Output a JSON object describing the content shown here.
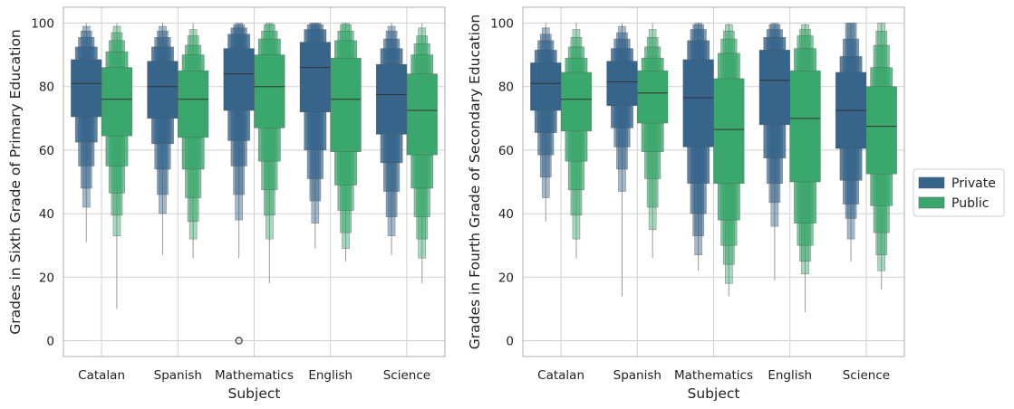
{
  "chart_data": [
    {
      "type": "boxen",
      "xlabel": "Subject",
      "ylabel": "Grades in Sixth Grade of Primary Education",
      "ylim": [
        -5,
        105
      ],
      "yticks": [
        0,
        20,
        40,
        60,
        80,
        100
      ],
      "grid": true,
      "categories": [
        "Catalan",
        "Spanish",
        "Mathematics",
        "English",
        "Science"
      ],
      "series": [
        {
          "name": "Private",
          "boxes": [
            {
              "median": 81,
              "levels": [
                [
                  70.5,
                  88.5
                ],
                [
                  62.5,
                  92.5
                ],
                [
                  55,
                  95.5
                ],
                [
                  48,
                  97.5
                ],
                [
                  42,
                  99
                ],
                [
                  31,
                  100
                ]
              ]
            },
            {
              "median": 80,
              "levels": [
                [
                  70,
                  88
                ],
                [
                  62,
                  92.5
                ],
                [
                  54,
                  95.5
                ],
                [
                  46,
                  97.5
                ],
                [
                  40,
                  99
                ],
                [
                  27,
                  100
                ]
              ]
            },
            {
              "median": 84,
              "levels": [
                [
                  72.5,
                  92
                ],
                [
                  63,
                  96.5
                ],
                [
                  55,
                  98.5
                ],
                [
                  46,
                  99.5
                ],
                [
                  38,
                  100
                ],
                [
                  26,
                  100
                ]
              ],
              "outliers": [
                0,
                0
              ]
            },
            {
              "median": 86,
              "levels": [
                [
                  72,
                  94
                ],
                [
                  60,
                  98
                ],
                [
                  51,
                  99.5
                ],
                [
                  44,
                  100
                ],
                [
                  37,
                  100
                ],
                [
                  29,
                  100
                ]
              ]
            },
            {
              "median": 77.5,
              "levels": [
                [
                  65,
                  87
                ],
                [
                  56,
                  92
                ],
                [
                  47,
                  95
                ],
                [
                  39,
                  97.5
                ],
                [
                  33,
                  99
                ],
                [
                  27,
                  100
                ]
              ]
            }
          ]
        },
        {
          "name": "Public",
          "boxes": [
            {
              "median": 76,
              "levels": [
                [
                  64.5,
                  86
                ],
                [
                  55,
                  91
                ],
                [
                  46.5,
                  94.5
                ],
                [
                  39.5,
                  97
                ],
                [
                  33,
                  99
                ],
                [
                  10,
                  100
                ]
              ]
            },
            {
              "median": 76,
              "levels": [
                [
                  64,
                  85
                ],
                [
                  54,
                  90
                ],
                [
                  45,
                  93
                ],
                [
                  37.5,
                  96
                ],
                [
                  32,
                  98
                ],
                [
                  26,
                  100
                ]
              ]
            },
            {
              "median": 80,
              "levels": [
                [
                  67,
                  90
                ],
                [
                  56.5,
                  95
                ],
                [
                  47.5,
                  97.5
                ],
                [
                  39.5,
                  99.5
                ],
                [
                  32,
                  100
                ],
                [
                  18,
                  100
                ]
              ]
            },
            {
              "median": 76,
              "levels": [
                [
                  59.5,
                  89
                ],
                [
                  49,
                  94.5
                ],
                [
                  41,
                  97.5
                ],
                [
                  34,
                  99.5
                ],
                [
                  29,
                  100
                ],
                [
                  25,
                  100
                ]
              ]
            },
            {
              "median": 72.5,
              "levels": [
                [
                  58.5,
                  84
                ],
                [
                  48,
                  90
                ],
                [
                  39,
                  93.5
                ],
                [
                  32,
                  96
                ],
                [
                  26,
                  98.5
                ],
                [
                  18,
                  100
                ]
              ]
            }
          ]
        }
      ]
    },
    {
      "type": "boxen",
      "xlabel": "Subject",
      "ylabel": "Grades in Fourth Grade of Secondary Education",
      "ylim": [
        -5,
        105
      ],
      "yticks": [
        0,
        20,
        40,
        60,
        80,
        100
      ],
      "grid": true,
      "categories": [
        "Catalan",
        "Spanish",
        "Mathematics",
        "English",
        "Science"
      ],
      "series": [
        {
          "name": "Private",
          "boxes": [
            {
              "median": 81,
              "levels": [
                [
                  72.5,
                  87.5
                ],
                [
                  65.5,
                  91.5
                ],
                [
                  58.5,
                  94.5
                ],
                [
                  51.5,
                  96.5
                ],
                [
                  45,
                  98.5
                ],
                [
                  37.5,
                  100
                ]
              ]
            },
            {
              "median": 81.5,
              "levels": [
                [
                  74,
                  88
                ],
                [
                  67,
                  92
                ],
                [
                  61,
                  95
                ],
                [
                  54,
                  97
                ],
                [
                  47,
                  99
                ],
                [
                  14,
                  100
                ]
              ]
            },
            {
              "median": 76.5,
              "levels": [
                [
                  61,
                  88.5
                ],
                [
                  49.5,
                  94.5
                ],
                [
                  40,
                  98
                ],
                [
                  33,
                  99.5
                ],
                [
                  27,
                  100
                ],
                [
                  22,
                  100
                ]
              ]
            },
            {
              "median": 82,
              "levels": [
                [
                  68,
                  91.5
                ],
                [
                  57.5,
                  95.5
                ],
                [
                  49.5,
                  98
                ],
                [
                  43.5,
                  99.5
                ],
                [
                  36,
                  100
                ],
                [
                  19,
                  100
                ]
              ]
            },
            {
              "median": 72.5,
              "levels": [
                [
                  60.5,
                  84.5
                ],
                [
                  50.5,
                  89.5
                ],
                [
                  43,
                  95
                ],
                [
                  38.5,
                  100
                ],
                [
                  32,
                  100
                ],
                [
                  25,
                  100
                ]
              ]
            }
          ]
        },
        {
          "name": "Public",
          "boxes": [
            {
              "median": 76,
              "levels": [
                [
                  66,
                  84.5
                ],
                [
                  56.5,
                  89
                ],
                [
                  47.5,
                  92.5
                ],
                [
                  39.5,
                  95.5
                ],
                [
                  32,
                  98
                ],
                [
                  26,
                  100
                ]
              ]
            },
            {
              "median": 78,
              "levels": [
                [
                  68.5,
                  85
                ],
                [
                  59.5,
                  89
                ],
                [
                  51,
                  92.5
                ],
                [
                  42,
                  95.5
                ],
                [
                  35,
                  98
                ],
                [
                  26,
                  100
                ]
              ]
            },
            {
              "median": 66.5,
              "levels": [
                [
                  49.5,
                  82.5
                ],
                [
                  38,
                  90.5
                ],
                [
                  30,
                  95
                ],
                [
                  24,
                  97.5
                ],
                [
                  18,
                  99.5
                ],
                [
                  14,
                  100
                ]
              ]
            },
            {
              "median": 70,
              "levels": [
                [
                  50,
                  85
                ],
                [
                  37,
                  92
                ],
                [
                  30,
                  96
                ],
                [
                  25,
                  98
                ],
                [
                  21,
                  99.5
                ],
                [
                  9,
                  100
                ]
              ]
            },
            {
              "median": 67.5,
              "levels": [
                [
                  52.5,
                  80
                ],
                [
                  42.5,
                  86
                ],
                [
                  34,
                  93
                ],
                [
                  27,
                  97.5
                ],
                [
                  22,
                  100
                ],
                [
                  16,
                  100
                ]
              ]
            }
          ]
        }
      ]
    }
  ],
  "legend": {
    "position": "right",
    "entries": [
      {
        "label": "Private",
        "color": "#36648b"
      },
      {
        "label": "Public",
        "color": "#3aa86c"
      }
    ]
  },
  "colors": {
    "private": "#36648b",
    "public": "#3aa86c",
    "grid": "#d0d0d0",
    "frame": "#bcbcbc"
  }
}
